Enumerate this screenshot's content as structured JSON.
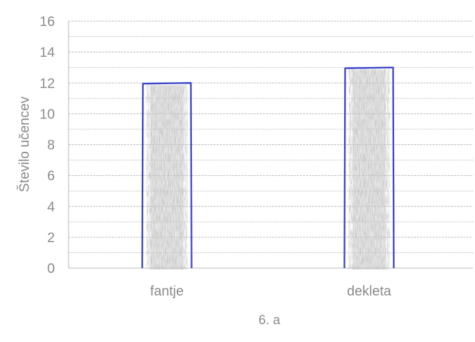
{
  "chart_data": {
    "type": "bar",
    "categories": [
      "fantje",
      "dekleta"
    ],
    "values": [
      12,
      13
    ],
    "ylabel": "Število učencev",
    "xlabel": "6. a",
    "ylim": [
      0,
      16
    ],
    "yticks": [
      0,
      2,
      4,
      6,
      8,
      10,
      12,
      14,
      16
    ],
    "minor_gridlines": true,
    "legend": "none"
  },
  "colors": {
    "outline": "#3c46c8",
    "fill": "#bdbdbd",
    "grid": "#b9b9b9",
    "text": "#8a8a8a"
  }
}
